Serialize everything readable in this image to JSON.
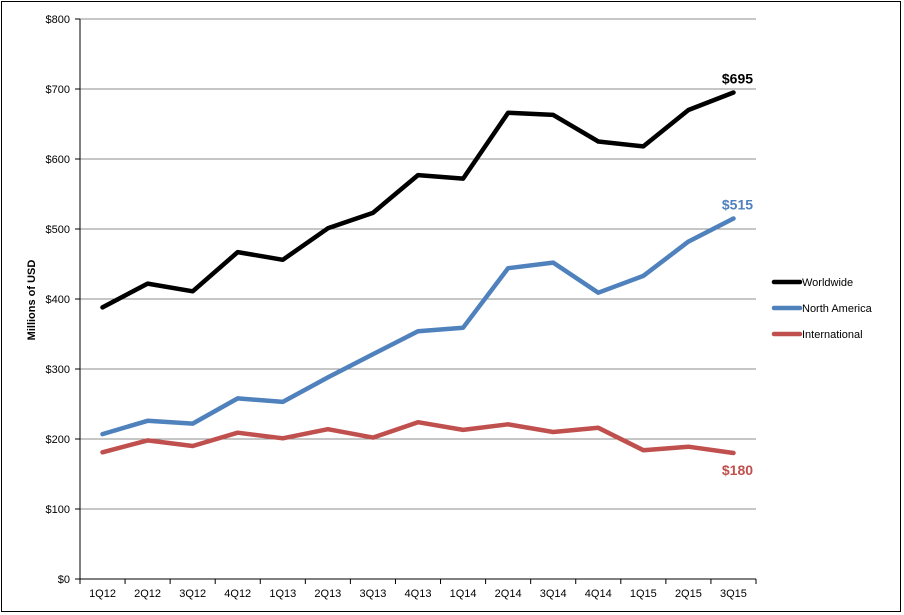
{
  "chart_data": {
    "type": "line",
    "title": "",
    "xlabel": "",
    "ylabel": "Millions of USD",
    "categories": [
      "1Q12",
      "2Q12",
      "3Q12",
      "4Q12",
      "1Q13",
      "2Q13",
      "3Q13",
      "4Q13",
      "1Q14",
      "2Q14",
      "3Q14",
      "4Q14",
      "1Q15",
      "2Q15",
      "3Q15"
    ],
    "ylim": [
      0,
      800
    ],
    "yticks": [
      0,
      100,
      200,
      300,
      400,
      500,
      600,
      700,
      800
    ],
    "ytick_labels": [
      "$0",
      "$100",
      "$200",
      "$300",
      "$400",
      "$500",
      "$600",
      "$700",
      "$800"
    ],
    "grid": "horizontal",
    "legend_position": "right",
    "series": [
      {
        "name": "Worldwide",
        "color": "#000000",
        "values": [
          388,
          422,
          411,
          467,
          456,
          501,
          523,
          577,
          572,
          666,
          663,
          625,
          618,
          670,
          695
        ],
        "end_label": "$695"
      },
      {
        "name": "North America",
        "color": "#4f81bd",
        "values": [
          207,
          226,
          222,
          258,
          253,
          288,
          321,
          354,
          359,
          444,
          452,
          409,
          433,
          482,
          515
        ],
        "end_label": "$515"
      },
      {
        "name": "International",
        "color": "#c0504d",
        "values": [
          181,
          198,
          190,
          209,
          201,
          214,
          202,
          224,
          213,
          221,
          210,
          216,
          184,
          189,
          180
        ],
        "end_label": "$180"
      }
    ]
  }
}
